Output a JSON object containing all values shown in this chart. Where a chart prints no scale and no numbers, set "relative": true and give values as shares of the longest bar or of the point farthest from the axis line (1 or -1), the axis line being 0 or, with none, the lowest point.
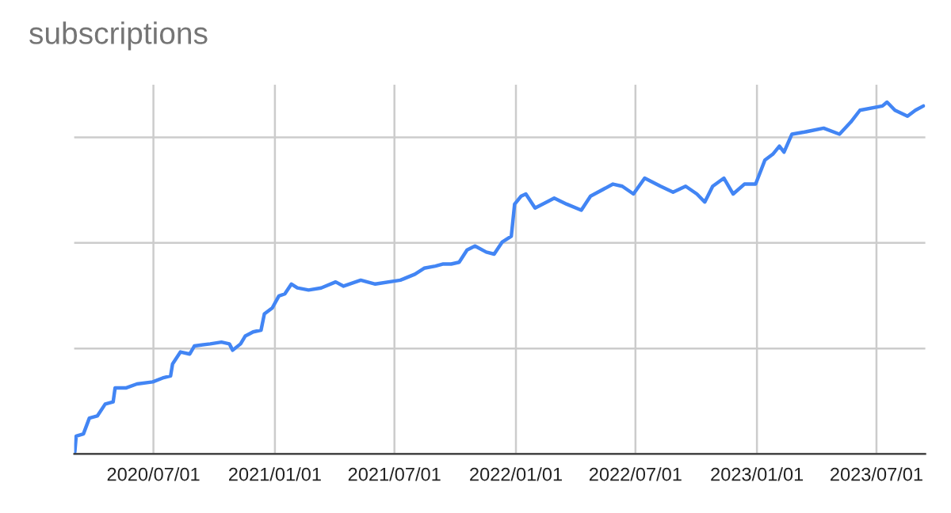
{
  "chart_data": {
    "type": "line",
    "title": "subscriptions",
    "relative": true,
    "grid": true,
    "legend": false,
    "marker": "none",
    "line_style": "solid",
    "xlim": [
      "2020-03-03",
      "2023-09-13"
    ],
    "xticks": [
      {
        "value": "2020-07-01",
        "label": "2020/07/01"
      },
      {
        "value": "2021-01-01",
        "label": "2021/01/01"
      },
      {
        "value": "2021-07-01",
        "label": "2021/07/01"
      },
      {
        "value": "2022-01-01",
        "label": "2022/01/01"
      },
      {
        "value": "2022-07-01",
        "label": "2022/07/01"
      },
      {
        "value": "2023-01-01",
        "label": "2023/01/01"
      },
      {
        "value": "2023-07-01",
        "label": "2023/07/01"
      }
    ],
    "x": [
      "2020-03-04",
      "2020-03-06",
      "2020-03-17",
      "2020-03-26",
      "2020-04-07",
      "2020-04-19",
      "2020-05-01",
      "2020-05-04",
      "2020-05-21",
      "2020-06-06",
      "2020-06-30",
      "2020-07-15",
      "2020-07-27",
      "2020-07-30",
      "2020-08-11",
      "2020-08-25",
      "2020-09-01",
      "2020-09-25",
      "2020-10-12",
      "2020-10-24",
      "2020-10-29",
      "2020-11-10",
      "2020-11-17",
      "2020-11-29",
      "2020-12-11",
      "2020-12-16",
      "2020-12-28",
      "2021-01-07",
      "2021-01-16",
      "2021-01-26",
      "2021-02-04",
      "2021-02-21",
      "2021-03-12",
      "2021-04-03",
      "2021-04-15",
      "2021-05-11",
      "2021-06-02",
      "2021-07-10",
      "2021-08-01",
      "2021-08-15",
      "2021-09-01",
      "2021-09-13",
      "2021-09-25",
      "2021-10-07",
      "2021-10-19",
      "2021-10-31",
      "2021-11-17",
      "2021-11-29",
      "2021-12-11",
      "2021-12-25",
      "2021-12-30",
      "2022-01-09",
      "2022-01-16",
      "2022-01-30",
      "2022-02-28",
      "2022-03-19",
      "2022-04-10",
      "2022-04-24",
      "2022-05-28",
      "2022-06-11",
      "2022-06-28",
      "2022-07-15",
      "2022-08-08",
      "2022-08-27",
      "2022-09-15",
      "2022-10-02",
      "2022-10-14",
      "2022-10-26",
      "2022-11-12",
      "2022-11-26",
      "2022-12-13",
      "2022-12-30",
      "2023-01-13",
      "2023-01-25",
      "2023-02-04",
      "2023-02-11",
      "2023-02-23",
      "2023-03-14",
      "2023-04-12",
      "2023-05-06",
      "2023-05-23",
      "2023-06-06",
      "2023-07-10",
      "2023-07-17",
      "2023-07-29",
      "2023-08-17",
      "2023-08-29",
      "2023-09-10"
    ],
    "series": [
      {
        "color": "#4285f4",
        "values": [
          0.006,
          0.051,
          0.057,
          0.102,
          0.108,
          0.142,
          0.148,
          0.188,
          0.188,
          0.199,
          0.205,
          0.216,
          0.222,
          0.256,
          0.29,
          0.284,
          0.307,
          0.313,
          0.318,
          0.313,
          0.295,
          0.313,
          0.335,
          0.347,
          0.352,
          0.398,
          0.415,
          0.449,
          0.455,
          0.483,
          0.472,
          0.466,
          0.472,
          0.489,
          0.477,
          0.494,
          0.483,
          0.494,
          0.511,
          0.528,
          0.534,
          0.54,
          0.54,
          0.545,
          0.58,
          0.591,
          0.574,
          0.568,
          0.602,
          0.619,
          0.71,
          0.733,
          0.739,
          0.699,
          0.727,
          0.71,
          0.693,
          0.733,
          0.767,
          0.761,
          0.739,
          0.784,
          0.761,
          0.744,
          0.761,
          0.739,
          0.716,
          0.761,
          0.784,
          0.739,
          0.767,
          0.767,
          0.835,
          0.852,
          0.875,
          0.858,
          0.909,
          0.915,
          0.926,
          0.909,
          0.943,
          0.977,
          0.989,
          1.0,
          0.977,
          0.96,
          0.977,
          0.989
        ]
      }
    ]
  }
}
